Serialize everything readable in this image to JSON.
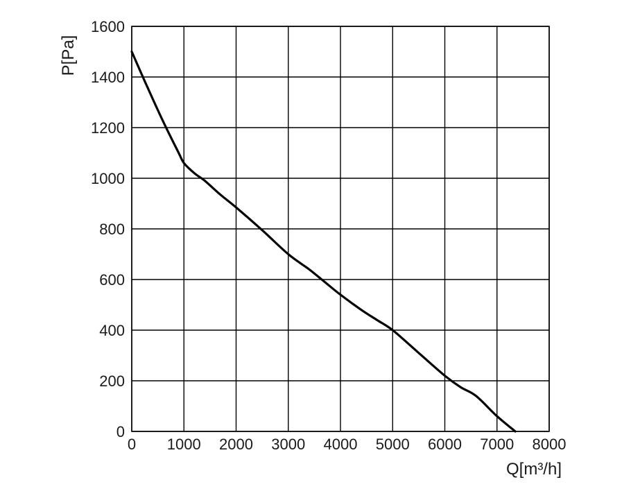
{
  "chart_data": {
    "type": "line",
    "xlabel": "Q[m³/h]",
    "ylabel": "P[Pa]",
    "xlim": [
      0,
      8000
    ],
    "ylim": [
      0,
      1600
    ],
    "x_ticks": [
      "0",
      "1000",
      "2000",
      "3000",
      "4000",
      "5000",
      "6000",
      "7000",
      "8000"
    ],
    "y_ticks": [
      "0",
      "200",
      "400",
      "600",
      "800",
      "1000",
      "1200",
      "1400",
      "1600"
    ],
    "grid": true,
    "series": [
      {
        "color": "#000000",
        "x": [
          0,
          300,
          600,
          900,
          1000,
          1200,
          1400,
          1700,
          2000,
          2500,
          3000,
          3400,
          3700,
          4000,
          4400,
          4700,
          5000,
          5500,
          6000,
          6300,
          6600,
          7000,
          7350
        ],
        "y": [
          1500,
          1360,
          1225,
          1100,
          1060,
          1020,
          990,
          935,
          885,
          795,
          700,
          640,
          590,
          540,
          480,
          440,
          400,
          310,
          220,
          175,
          140,
          60,
          0
        ]
      }
    ]
  }
}
